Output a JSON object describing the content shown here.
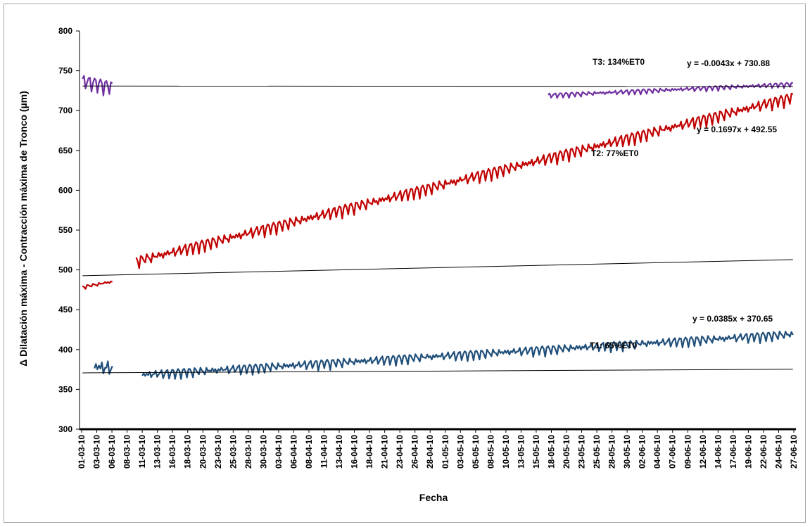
{
  "chart_data": {
    "type": "line",
    "title": "",
    "xlabel": "Fecha",
    "ylabel": "Δ Dilatación máxima - Contracción máxima de Tronco (µm)",
    "ylim": [
      300,
      800
    ],
    "yticks": [
      300,
      350,
      400,
      450,
      500,
      550,
      600,
      650,
      700,
      750,
      800
    ],
    "grid": false,
    "legend": "none",
    "categories": [
      "01-03-10",
      "03-03-10",
      "06-03-10",
      "08-03-10",
      "11-03-10",
      "13-03-10",
      "16-03-10",
      "18-03-10",
      "20-03-10",
      "23-03-10",
      "25-03-10",
      "28-03-10",
      "30-03-10",
      "03-04-10",
      "06-04-10",
      "08-04-10",
      "11-04-10",
      "13-04-10",
      "16-04-10",
      "18-04-10",
      "21-04-10",
      "23-04-10",
      "26-04-10",
      "28-04-10",
      "01-05-10",
      "03-05-10",
      "05-05-10",
      "08-05-10",
      "10-05-10",
      "13-05-10",
      "15-05-10",
      "18-05-10",
      "20-05-10",
      "23-05-10",
      "25-05-10",
      "28-05-10",
      "30-05-10",
      "02-06-10",
      "04-06-10",
      "07-06-10",
      "09-06-10",
      "12-06-10",
      "14-06-10",
      "17-06-10",
      "19-06-10",
      "22-06-10",
      "24-06-10",
      "27-06-10"
    ],
    "series": [
      {
        "name": "T3: 134%ET0",
        "color": "#7030a0",
        "segments": [
          {
            "start_day": 0,
            "end_day": 5,
            "start_value": 740,
            "end_value": 732,
            "oscillation": 12
          },
          {
            "start_day": 78,
            "end_day": 119,
            "start_value": 720,
            "end_value": 734,
            "oscillation": 4
          }
        ],
        "trendline": {
          "equation": "y = -0.0043x + 730.88",
          "slope": -0.0043,
          "intercept": 730.88
        }
      },
      {
        "name": "T2: 77%ET0",
        "color": "#c00000",
        "segments": [
          {
            "start_day": 0,
            "end_day": 5,
            "start_value": 479,
            "end_value": 486,
            "oscillation": 3
          },
          {
            "start_day": 9,
            "end_day": 119,
            "start_value": 513,
            "end_value": 719,
            "oscillation": 10
          }
        ],
        "trendline": {
          "equation": "y = 0.1697x + 492.55",
          "slope": 0.1697,
          "intercept": 492.55
        }
      },
      {
        "name": "T1: 65%ET0",
        "color": "#1f4e79",
        "segments": [
          {
            "start_day": 2,
            "end_day": 5,
            "start_value": 382,
            "end_value": 380,
            "oscillation": 16
          },
          {
            "start_day": 10,
            "end_day": 119,
            "start_value": 370,
            "end_value": 421,
            "oscillation": 8
          }
        ],
        "trendline": {
          "equation": "y = 0.0385x + 370.65",
          "slope": 0.0385,
          "intercept": 370.65
        }
      }
    ]
  }
}
